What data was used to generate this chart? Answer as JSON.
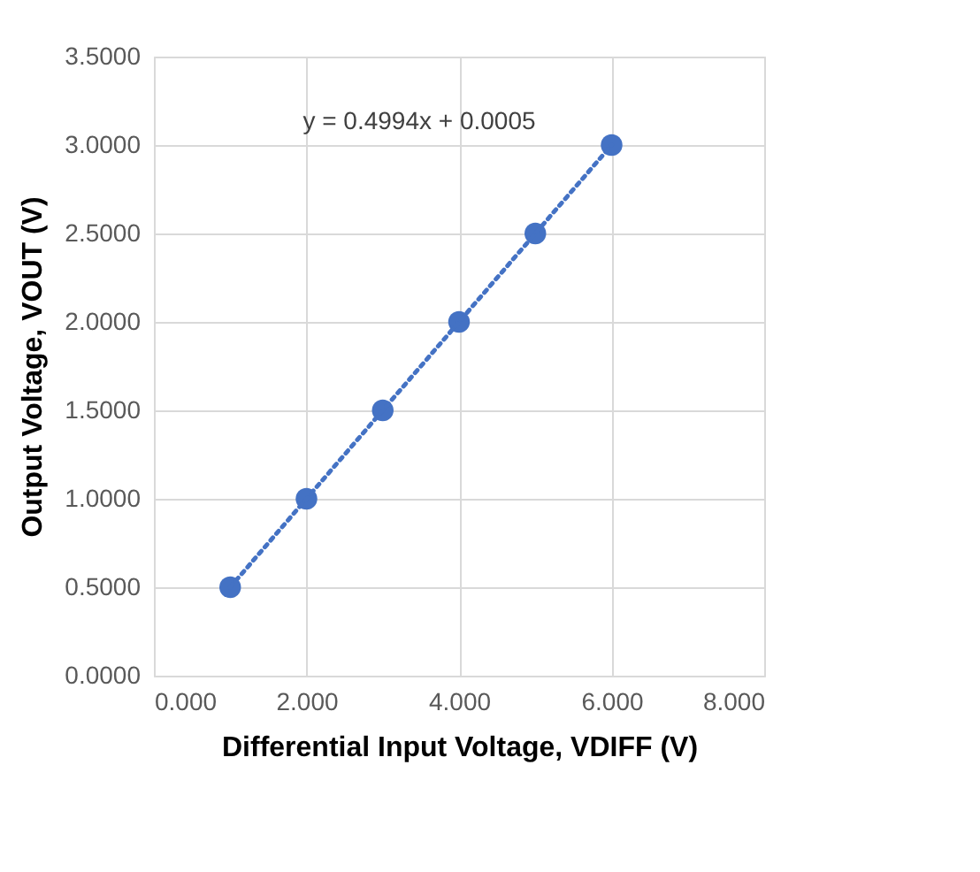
{
  "chart_data": {
    "type": "scatter",
    "xlabel": "Differential Input Voltage, VDIFF (V)",
    "ylabel": "Output Voltage, VOUT (V)",
    "x": [
      1,
      2,
      3,
      4,
      5,
      6
    ],
    "series": [
      {
        "color": "#4472c4",
        "values": [
          0.5,
          1.0,
          1.5,
          2.0,
          2.5,
          3.0
        ],
        "marker": "circle"
      },
      {
        "type": "line",
        "color": "#4472c4",
        "x": [
          1,
          6
        ],
        "values": [
          0.5,
          3.0
        ],
        "line_style": "dotted",
        "marker": "none"
      }
    ],
    "annotations": [
      "y = 0.4994x + 0.0005"
    ],
    "xlim": [
      0,
      8
    ],
    "ylim": [
      0,
      3.5
    ],
    "xticks": [
      {
        "value": 0,
        "label": "0.000"
      },
      {
        "value": 2,
        "label": "2.000"
      },
      {
        "value": 4,
        "label": "4.000"
      },
      {
        "value": 6,
        "label": "6.000"
      },
      {
        "value": 8,
        "label": "8.000"
      }
    ],
    "yticks": [
      {
        "value": 0,
        "label": "0.0000"
      },
      {
        "value": 0.5,
        "label": "0.5000"
      },
      {
        "value": 1,
        "label": "1.0000"
      },
      {
        "value": 1.5,
        "label": "1.5000"
      },
      {
        "value": 2,
        "label": "2.0000"
      },
      {
        "value": 2.5,
        "label": "2.5000"
      },
      {
        "value": 3,
        "label": "3.0000"
      },
      {
        "value": 3.5,
        "label": "3.5000"
      }
    ],
    "grid": true
  }
}
